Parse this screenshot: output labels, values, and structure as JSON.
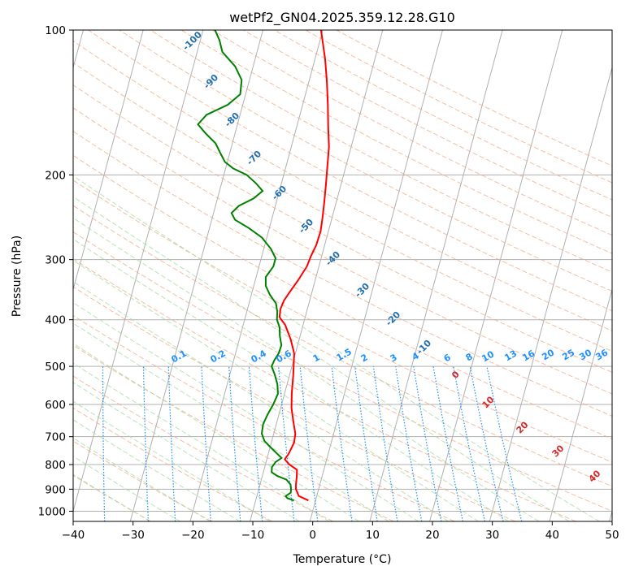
{
  "chart_data": {
    "type": "line",
    "subtype": "skew-T log-P diagram",
    "title": "wetPf2_GN04.2025.359.12.28.G10",
    "xlabel": "Temperature (°C)",
    "ylabel": "Pressure (hPa)",
    "xlim": [
      -40,
      50
    ],
    "ylim": [
      1050,
      100
    ],
    "y_scale": "log",
    "grid": true,
    "x_ticks": [
      -40,
      -30,
      -20,
      -10,
      0,
      10,
      20,
      30,
      40,
      50
    ],
    "y_ticks": [
      100,
      200,
      300,
      400,
      500,
      600,
      700,
      800,
      900,
      1000
    ],
    "series": [
      {
        "role": "temperature",
        "color": "#ff0000",
        "points": [
          [
            950,
            -1.2
          ],
          [
            930,
            -3.0
          ],
          [
            900,
            -3.8
          ],
          [
            880,
            -4.0
          ],
          [
            850,
            -4.2
          ],
          [
            820,
            -4.5
          ],
          [
            800,
            -6.0
          ],
          [
            780,
            -7.0
          ],
          [
            760,
            -6.6
          ],
          [
            720,
            -6.2
          ],
          [
            690,
            -6.4
          ],
          [
            650,
            -7.3
          ],
          [
            610,
            -8.2
          ],
          [
            570,
            -8.8
          ],
          [
            520,
            -9.4
          ],
          [
            470,
            -10.2
          ],
          [
            440,
            -11.4
          ],
          [
            410,
            -13.0
          ],
          [
            395,
            -14.3
          ],
          [
            380,
            -14.5
          ],
          [
            365,
            -14.3
          ],
          [
            350,
            -13.7
          ],
          [
            330,
            -12.8
          ],
          [
            310,
            -12.0
          ],
          [
            295,
            -11.8
          ],
          [
            280,
            -11.4
          ],
          [
            262,
            -11.3
          ],
          [
            245,
            -11.6
          ],
          [
            228,
            -12.0
          ],
          [
            210,
            -12.5
          ],
          [
            195,
            -13.0
          ],
          [
            175,
            -13.7
          ],
          [
            158,
            -14.8
          ],
          [
            143,
            -15.8
          ],
          [
            128,
            -17.0
          ],
          [
            115,
            -18.3
          ],
          [
            100,
            -20.3
          ]
        ]
      },
      {
        "role": "dewpoint",
        "color": "#008000",
        "points": [
          [
            950,
            -3.6
          ],
          [
            940,
            -4.8
          ],
          [
            930,
            -5.2
          ],
          [
            915,
            -4.5
          ],
          [
            900,
            -4.6
          ],
          [
            880,
            -4.9
          ],
          [
            860,
            -5.8
          ],
          [
            845,
            -7.5
          ],
          [
            830,
            -8.6
          ],
          [
            810,
            -8.8
          ],
          [
            790,
            -8.4
          ],
          [
            775,
            -7.6
          ],
          [
            760,
            -8.5
          ],
          [
            740,
            -9.7
          ],
          [
            715,
            -11.2
          ],
          [
            690,
            -12.0
          ],
          [
            660,
            -12.2
          ],
          [
            630,
            -11.9
          ],
          [
            600,
            -11.4
          ],
          [
            570,
            -11.1
          ],
          [
            545,
            -11.6
          ],
          [
            520,
            -12.5
          ],
          [
            500,
            -13.4
          ],
          [
            485,
            -13.2
          ],
          [
            470,
            -12.8
          ],
          [
            452,
            -12.7
          ],
          [
            432,
            -13.4
          ],
          [
            415,
            -13.8
          ],
          [
            400,
            -14.6
          ],
          [
            385,
            -14.9
          ],
          [
            370,
            -15.5
          ],
          [
            355,
            -16.9
          ],
          [
            340,
            -18.0
          ],
          [
            326,
            -18.4
          ],
          [
            310,
            -17.6
          ],
          [
            298,
            -17.6
          ],
          [
            285,
            -18.8
          ],
          [
            270,
            -20.8
          ],
          [
            258,
            -23.4
          ],
          [
            248,
            -26.1
          ],
          [
            240,
            -27.0
          ],
          [
            232,
            -26.1
          ],
          [
            224,
            -24.0
          ],
          [
            216,
            -22.8
          ],
          [
            208,
            -24.3
          ],
          [
            200,
            -26.2
          ],
          [
            194,
            -28.7
          ],
          [
            188,
            -30.4
          ],
          [
            180,
            -31.6
          ],
          [
            172,
            -32.8
          ],
          [
            164,
            -34.9
          ],
          [
            157,
            -36.6
          ],
          [
            150,
            -35.6
          ],
          [
            143,
            -32.5
          ],
          [
            136,
            -30.9
          ],
          [
            127,
            -31.3
          ],
          [
            119,
            -33.0
          ],
          [
            111,
            -35.8
          ],
          [
            105,
            -36.8
          ],
          [
            100,
            -38.0
          ]
        ]
      }
    ],
    "dry_adiabat_labels": [
      "-100",
      "-90",
      "-80",
      "-70",
      "-60",
      "-50",
      "-40",
      "-30",
      "-20",
      "-10"
    ],
    "moist_adiabat_labels": [
      "0",
      "10",
      "20",
      "30",
      "40"
    ],
    "mixing_ratio_labels": [
      "0.1",
      "0.2",
      "0.4",
      "0.6",
      "1",
      "1.5",
      "2",
      "3",
      "4",
      "6",
      "8",
      "10",
      "13",
      "16",
      "20",
      "25",
      "30",
      "36"
    ],
    "colors": {
      "temperature": "#ff0000",
      "dewpoint": "#008000",
      "isotherms": "#b0b0b0",
      "dry_adiabats": "#f4a582",
      "moist_adiabats": "#a1d99b",
      "mixing_ratio": "#1e90ff"
    }
  }
}
